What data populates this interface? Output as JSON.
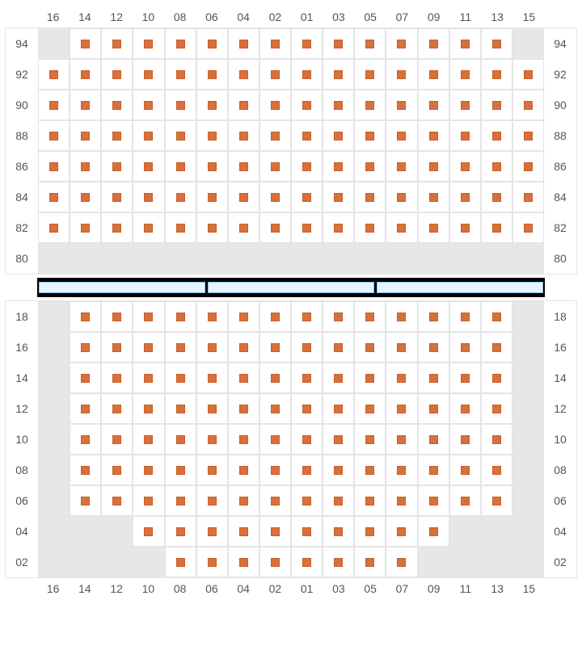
{
  "layout": {
    "columns": [
      "16",
      "14",
      "12",
      "10",
      "08",
      "06",
      "04",
      "02",
      "01",
      "03",
      "05",
      "07",
      "09",
      "11",
      "13",
      "15"
    ],
    "seat_color": "#d8703c",
    "seat_border": "#c85f2a",
    "empty_bg": "#e7e7e7",
    "cell_bg": "#ffffff",
    "grid_color": "#e5e5e5",
    "label_color": "#555555",
    "stage_bg": "#000000",
    "stage_panel_bg": "#e6f4ff",
    "stage_panel_border": "#7fc4ef",
    "stage_panel_count": 3
  },
  "sections": [
    {
      "name": "upper",
      "rows": [
        {
          "label": "94",
          "cells": "ESSSSSSSSSSSSSSE"
        },
        {
          "label": "92",
          "cells": "SSSSSSSSSSSSSSSS"
        },
        {
          "label": "90",
          "cells": "SSSSSSSSSSSSSSSS"
        },
        {
          "label": "88",
          "cells": "SSSSSSSSSSSSSSSS"
        },
        {
          "label": "86",
          "cells": "SSSSSSSSSSSSSSSS"
        },
        {
          "label": "84",
          "cells": "SSSSSSSSSSSSSSSS"
        },
        {
          "label": "82",
          "cells": "SSSSSSSSSSSSSSSS"
        },
        {
          "label": "80",
          "cells": "EEEEEEEEEEEEEEEE"
        }
      ]
    },
    {
      "name": "lower",
      "rows": [
        {
          "label": "18",
          "cells": "ESSSSSSSSSSSSSSE"
        },
        {
          "label": "16",
          "cells": "ESSSSSSSSSSSSSSE"
        },
        {
          "label": "14",
          "cells": "ESSSSSSSSSSSSSSE"
        },
        {
          "label": "12",
          "cells": "ESSSSSSSSSSSSSSE"
        },
        {
          "label": "10",
          "cells": "ESSSSSSSSSSSSSSE"
        },
        {
          "label": "08",
          "cells": "ESSSSSSSSSSSSSSE"
        },
        {
          "label": "06",
          "cells": "ESSSSSSSSSSSSSSE"
        },
        {
          "label": "04",
          "cells": "EEESSSSSSSSSSEEE"
        },
        {
          "label": "02",
          "cells": "EEEESSSSSSSSEEEE"
        }
      ]
    }
  ]
}
